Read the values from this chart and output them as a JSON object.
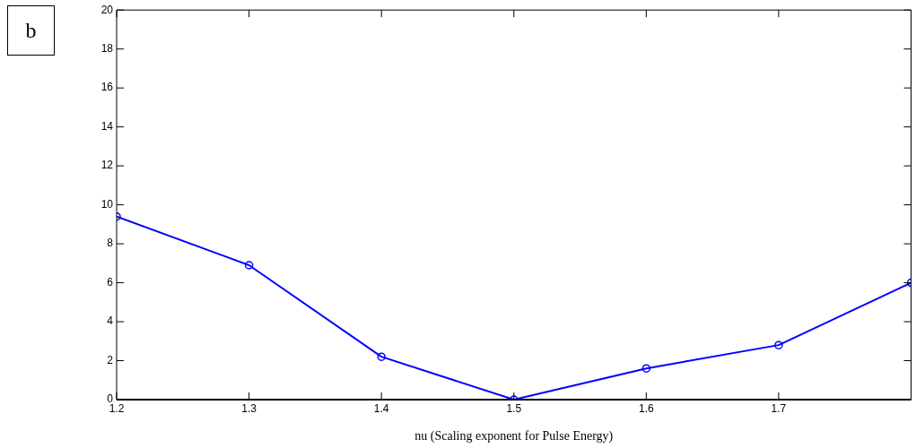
{
  "chart_data": {
    "type": "line",
    "xlabel": "nu (Scaling exponent for Pulse Energy)",
    "x": [
      1.2,
      1.3,
      1.4,
      1.5,
      1.6,
      1.7,
      1.8
    ],
    "series": [
      {
        "color": "#0000ff",
        "values": [
          9.4,
          6.9,
          2.2,
          0,
          1.6,
          2.8,
          6.0
        ]
      }
    ],
    "xlim": [
      1.2,
      1.8
    ],
    "xticks": [
      1.2,
      1.3,
      1.4,
      1.5,
      1.6,
      1.7,
      {
        "value": 1.8,
        "label": null
      }
    ],
    "ylim": [
      0,
      20
    ],
    "yticks": [
      0,
      2,
      4,
      6,
      8,
      10,
      12,
      14,
      16,
      18,
      20
    ],
    "marker": "circle",
    "line_style": "solid",
    "grid": false,
    "legend": false,
    "annotations": [
      "b"
    ]
  }
}
